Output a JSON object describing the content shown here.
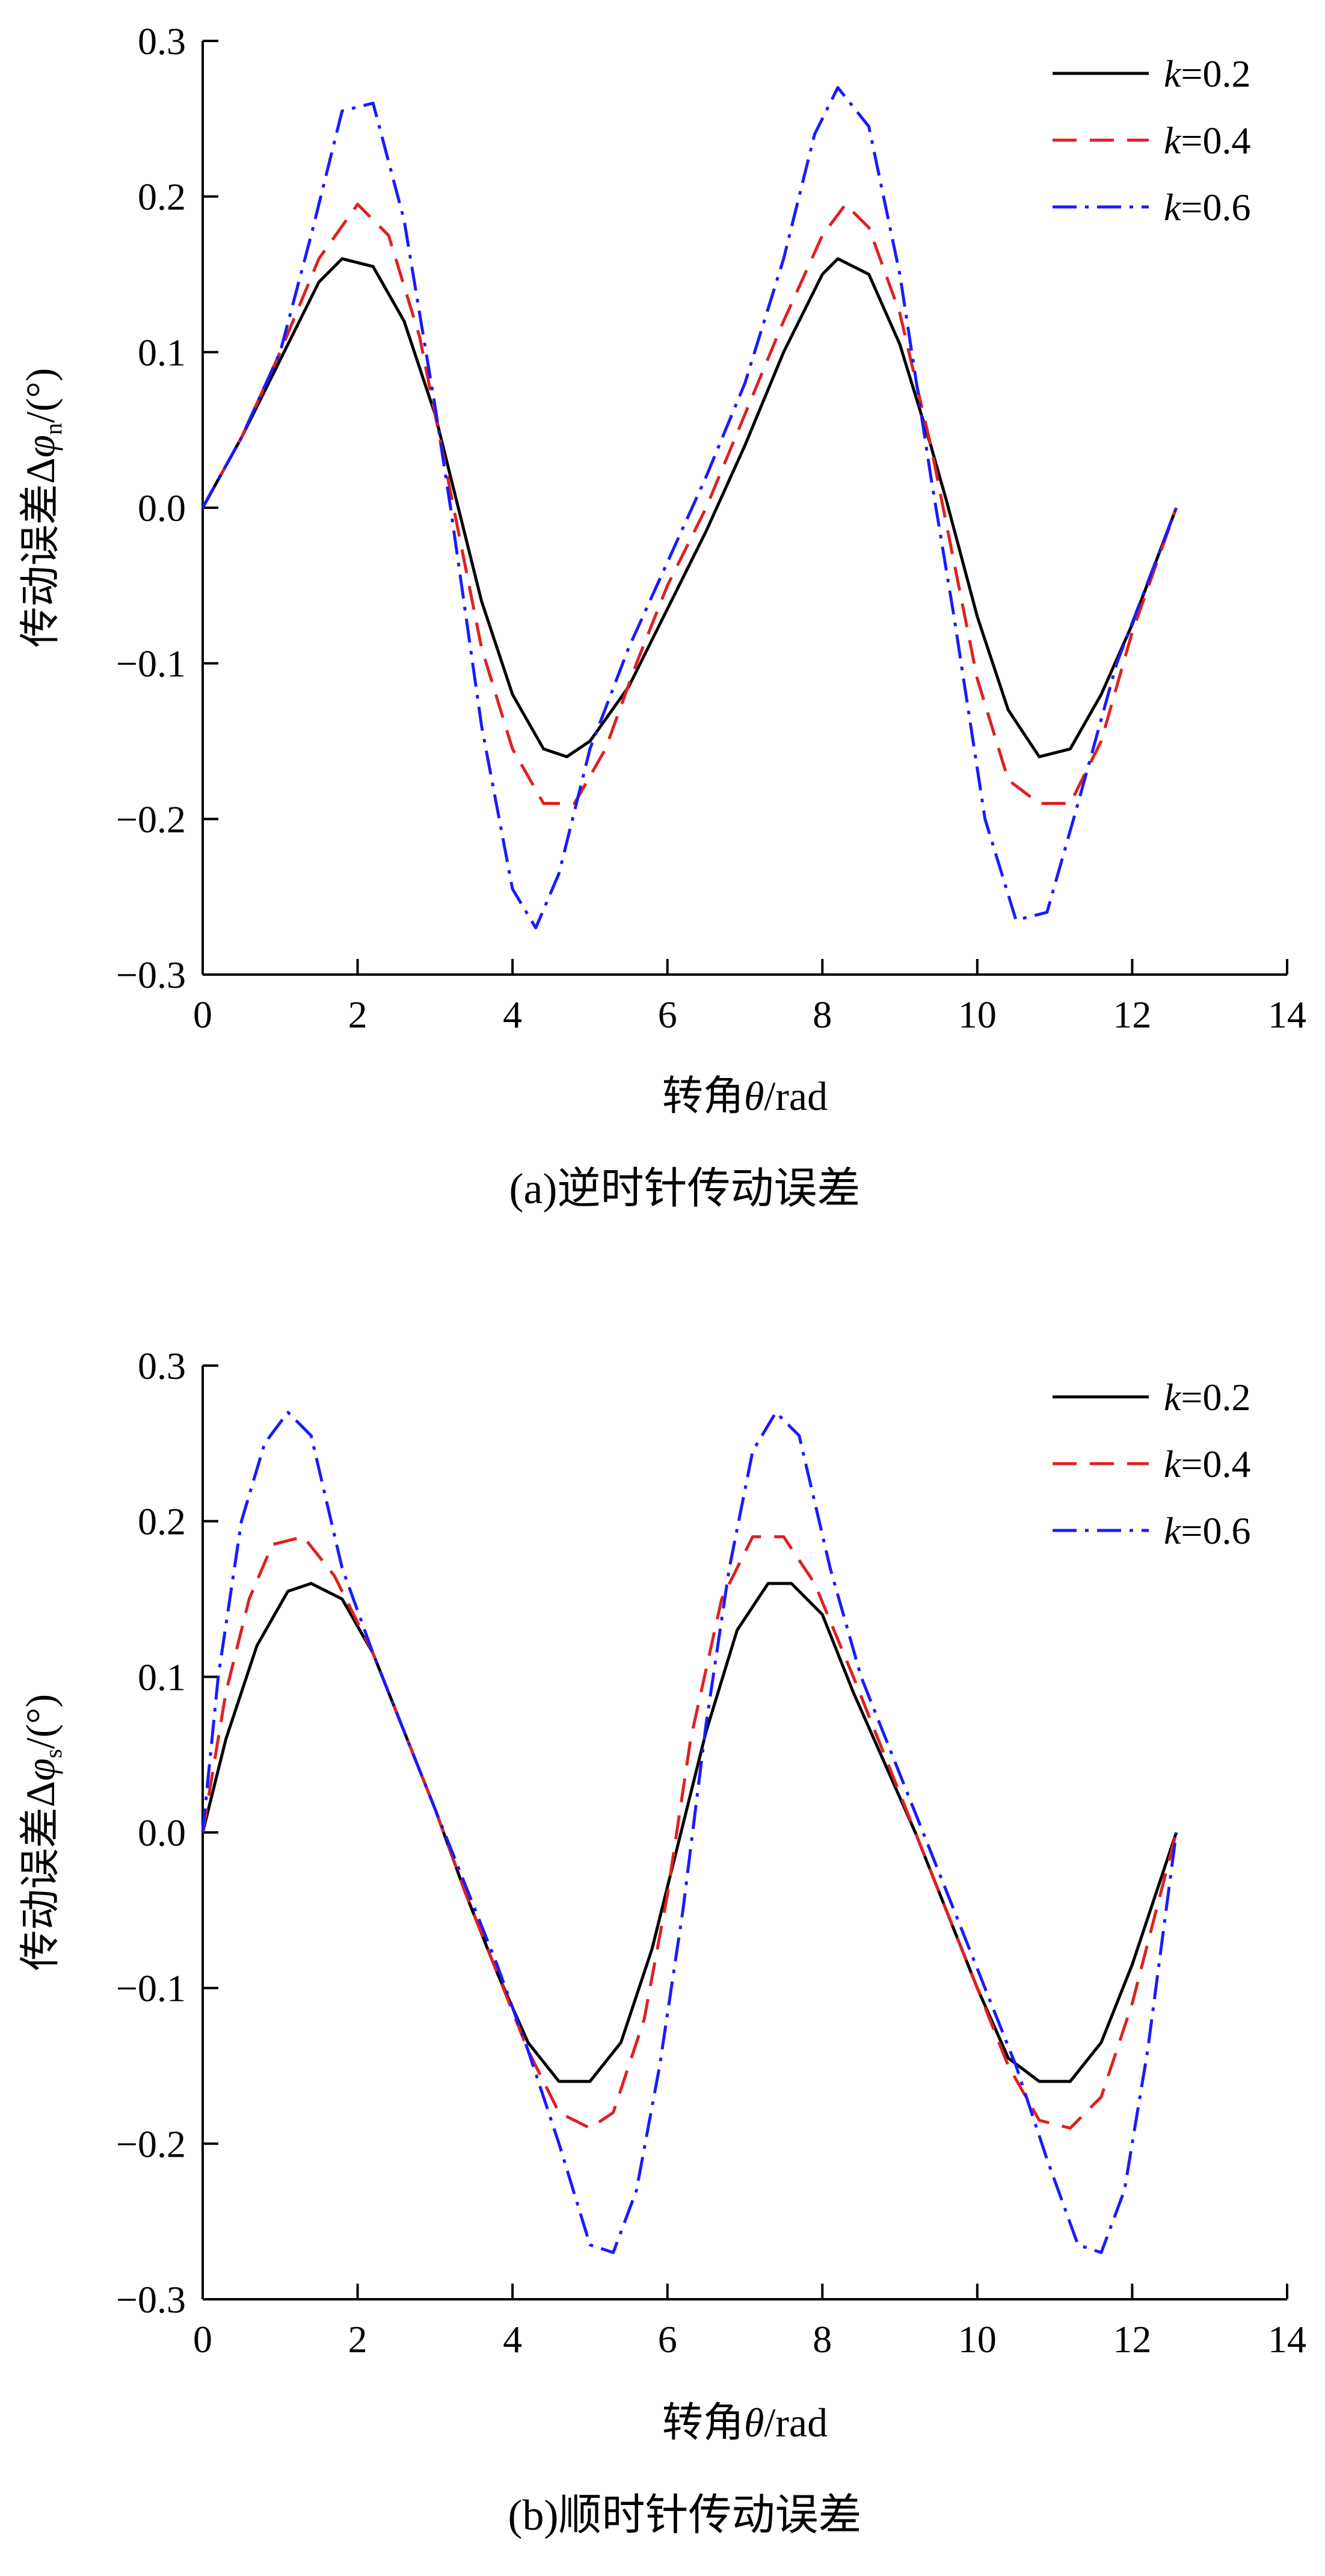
{
  "chart_data": [
    {
      "type": "line",
      "caption": "(a)逆时针传动误差",
      "xlabel_prefix": "转角",
      "xlabel_var": "θ",
      "xlabel_suffix": "/rad",
      "ylabel_prefix": "传动误差Δ",
      "ylabel_var": "φ",
      "ylabel_sub": "n",
      "ylabel_suffix": "/(°)",
      "xlim": [
        0,
        14
      ],
      "ylim": [
        -0.3,
        0.3
      ],
      "x_ticks": [
        0,
        2,
        4,
        6,
        8,
        10,
        12,
        14
      ],
      "x_tick_labels": [
        "0",
        "2",
        "4",
        "6",
        "8",
        "10",
        "12",
        "14"
      ],
      "y_ticks": [
        0.3,
        0.2,
        0.1,
        0.0,
        -0.1,
        -0.2,
        -0.3
      ],
      "y_tick_labels": [
        "0.3",
        "0.2",
        "0.1",
        "0.0",
        "−0.1",
        "−0.2",
        "−0.3"
      ],
      "legend_position": "top-right",
      "grid": false,
      "series": [
        {
          "name": "k=0.2",
          "label_var": "k",
          "label_val": "=0.2",
          "color": "#000000",
          "dash": "solid",
          "x": [
            0,
            0.5,
            1.0,
            1.5,
            1.8,
            2.2,
            2.6,
            3.0,
            3.2,
            3.6,
            4.0,
            4.4,
            4.7,
            5.0,
            5.5,
            6.0,
            6.5,
            7.0,
            7.5,
            8.0,
            8.2,
            8.6,
            9.0,
            9.4,
            9.6,
            10.0,
            10.4,
            10.8,
            11.2,
            11.6,
            12.0,
            12.57
          ],
          "y": [
            0,
            0.045,
            0.095,
            0.145,
            0.16,
            0.155,
            0.12,
            0.06,
            0.02,
            -0.06,
            -0.12,
            -0.155,
            -0.16,
            -0.15,
            -0.115,
            -0.065,
            -0.015,
            0.04,
            0.1,
            0.15,
            0.16,
            0.15,
            0.105,
            0.04,
            0.005,
            -0.07,
            -0.13,
            -0.16,
            -0.155,
            -0.12,
            -0.075,
            0
          ]
        },
        {
          "name": "k=0.4",
          "label_var": "k",
          "label_val": "=0.4",
          "color": "#e02020",
          "dash": "dashed",
          "x": [
            0,
            0.5,
            1.0,
            1.5,
            2.0,
            2.4,
            2.8,
            3.0,
            3.2,
            3.6,
            4.0,
            4.4,
            4.8,
            5.2,
            5.6,
            6.0,
            6.5,
            7.0,
            7.5,
            8.0,
            8.3,
            8.6,
            9.0,
            9.4,
            9.6,
            10.0,
            10.4,
            10.8,
            11.2,
            11.6,
            12.0,
            12.57
          ],
          "y": [
            0,
            0.045,
            0.1,
            0.16,
            0.195,
            0.175,
            0.11,
            0.06,
            0.01,
            -0.09,
            -0.155,
            -0.19,
            -0.19,
            -0.155,
            -0.1,
            -0.05,
            0.0,
            0.06,
            0.12,
            0.175,
            0.195,
            0.18,
            0.125,
            0.04,
            -0.01,
            -0.11,
            -0.175,
            -0.19,
            -0.19,
            -0.15,
            -0.08,
            0
          ]
        },
        {
          "name": "k=0.6",
          "label_var": "k",
          "label_val": "=0.6",
          "color": "#1a1aff",
          "dash": "dashdot",
          "x": [
            0,
            0.5,
            1.0,
            1.4,
            1.8,
            2.2,
            2.6,
            3.0,
            3.2,
            3.6,
            4.0,
            4.3,
            4.6,
            5.0,
            5.5,
            6.0,
            6.5,
            7.0,
            7.5,
            7.9,
            8.2,
            8.6,
            9.0,
            9.4,
            9.7,
            10.1,
            10.5,
            10.9,
            11.3,
            11.8,
            12.57
          ],
          "y": [
            0,
            0.045,
            0.1,
            0.175,
            0.255,
            0.26,
            0.185,
            0.065,
            0.0,
            -0.14,
            -0.245,
            -0.27,
            -0.235,
            -0.155,
            -0.09,
            -0.035,
            0.02,
            0.08,
            0.16,
            0.24,
            0.27,
            0.245,
            0.15,
            0.02,
            -0.07,
            -0.2,
            -0.265,
            -0.26,
            -0.19,
            -0.1,
            0
          ]
        }
      ]
    },
    {
      "type": "line",
      "caption": "(b)顺时针传动误差",
      "xlabel_prefix": "转角",
      "xlabel_var": "θ",
      "xlabel_suffix": "/rad",
      "ylabel_prefix": "传动误差Δ",
      "ylabel_var": "φ",
      "ylabel_sub": "s",
      "ylabel_suffix": "/(°)",
      "xlim": [
        0,
        14
      ],
      "ylim": [
        -0.3,
        0.3
      ],
      "x_ticks": [
        0,
        2,
        4,
        6,
        8,
        10,
        12,
        14
      ],
      "x_tick_labels": [
        "0",
        "2",
        "4",
        "6",
        "8",
        "10",
        "12",
        "14"
      ],
      "y_ticks": [
        0.3,
        0.2,
        0.1,
        0.0,
        -0.1,
        -0.2,
        -0.3
      ],
      "y_tick_labels": [
        "0.3",
        "0.2",
        "0.1",
        "0.0",
        "−0.1",
        "−0.2",
        "−0.3"
      ],
      "legend_position": "top-right",
      "grid": false,
      "series": [
        {
          "name": "k=0.2",
          "label_var": "k",
          "label_val": "=0.2",
          "color": "#000000",
          "dash": "solid",
          "x": [
            0,
            0.3,
            0.7,
            1.1,
            1.4,
            1.8,
            2.2,
            2.6,
            3.0,
            3.4,
            3.8,
            4.2,
            4.6,
            5.0,
            5.4,
            5.8,
            6.1,
            6.5,
            6.9,
            7.3,
            7.6,
            8.0,
            8.4,
            8.8,
            9.2,
            9.6,
            10.0,
            10.4,
            10.8,
            11.2,
            11.6,
            12.0,
            12.57
          ],
          "y": [
            0,
            0.06,
            0.12,
            0.155,
            0.16,
            0.15,
            0.115,
            0.065,
            0.015,
            -0.04,
            -0.09,
            -0.135,
            -0.16,
            -0.16,
            -0.135,
            -0.075,
            -0.015,
            0.065,
            0.13,
            0.16,
            0.16,
            0.14,
            0.09,
            0.045,
            0.0,
            -0.05,
            -0.1,
            -0.145,
            -0.16,
            -0.16,
            -0.135,
            -0.085,
            0
          ]
        },
        {
          "name": "k=0.4",
          "label_var": "k",
          "label_val": "=0.4",
          "color": "#e02020",
          "dash": "dashed",
          "x": [
            0,
            0.3,
            0.6,
            0.9,
            1.3,
            1.7,
            2.2,
            2.6,
            3.0,
            3.4,
            3.8,
            4.2,
            4.6,
            5.0,
            5.3,
            5.7,
            6.0,
            6.3,
            6.7,
            7.1,
            7.5,
            7.9,
            8.4,
            8.8,
            9.2,
            9.6,
            10.0,
            10.4,
            10.8,
            11.2,
            11.6,
            12.0,
            12.57
          ],
          "y": [
            0,
            0.09,
            0.15,
            0.185,
            0.19,
            0.165,
            0.115,
            0.065,
            0.015,
            -0.04,
            -0.09,
            -0.14,
            -0.18,
            -0.19,
            -0.18,
            -0.12,
            -0.04,
            0.06,
            0.15,
            0.19,
            0.19,
            0.16,
            0.1,
            0.05,
            0.0,
            -0.05,
            -0.1,
            -0.15,
            -0.185,
            -0.19,
            -0.17,
            -0.11,
            0
          ]
        },
        {
          "name": "k=0.6",
          "label_var": "k",
          "label_val": "=0.6",
          "color": "#1a1aff",
          "dash": "dashdot",
          "x": [
            0,
            0.2,
            0.5,
            0.8,
            1.1,
            1.4,
            1.8,
            2.2,
            2.6,
            3.0,
            3.4,
            3.8,
            4.2,
            4.6,
            5.0,
            5.3,
            5.6,
            5.9,
            6.2,
            6.5,
            6.8,
            7.1,
            7.4,
            7.7,
            8.1,
            8.5,
            8.9,
            9.3,
            9.7,
            10.1,
            10.5,
            10.9,
            11.3,
            11.6,
            11.9,
            12.2,
            12.57
          ],
          "y": [
            0,
            0.1,
            0.2,
            0.25,
            0.27,
            0.255,
            0.17,
            0.115,
            0.065,
            0.015,
            -0.035,
            -0.085,
            -0.14,
            -0.2,
            -0.265,
            -0.27,
            -0.23,
            -0.15,
            -0.05,
            0.07,
            0.17,
            0.245,
            0.27,
            0.255,
            0.17,
            0.1,
            0.05,
            0.0,
            -0.05,
            -0.1,
            -0.15,
            -0.21,
            -0.265,
            -0.27,
            -0.23,
            -0.14,
            0
          ]
        }
      ]
    }
  ]
}
